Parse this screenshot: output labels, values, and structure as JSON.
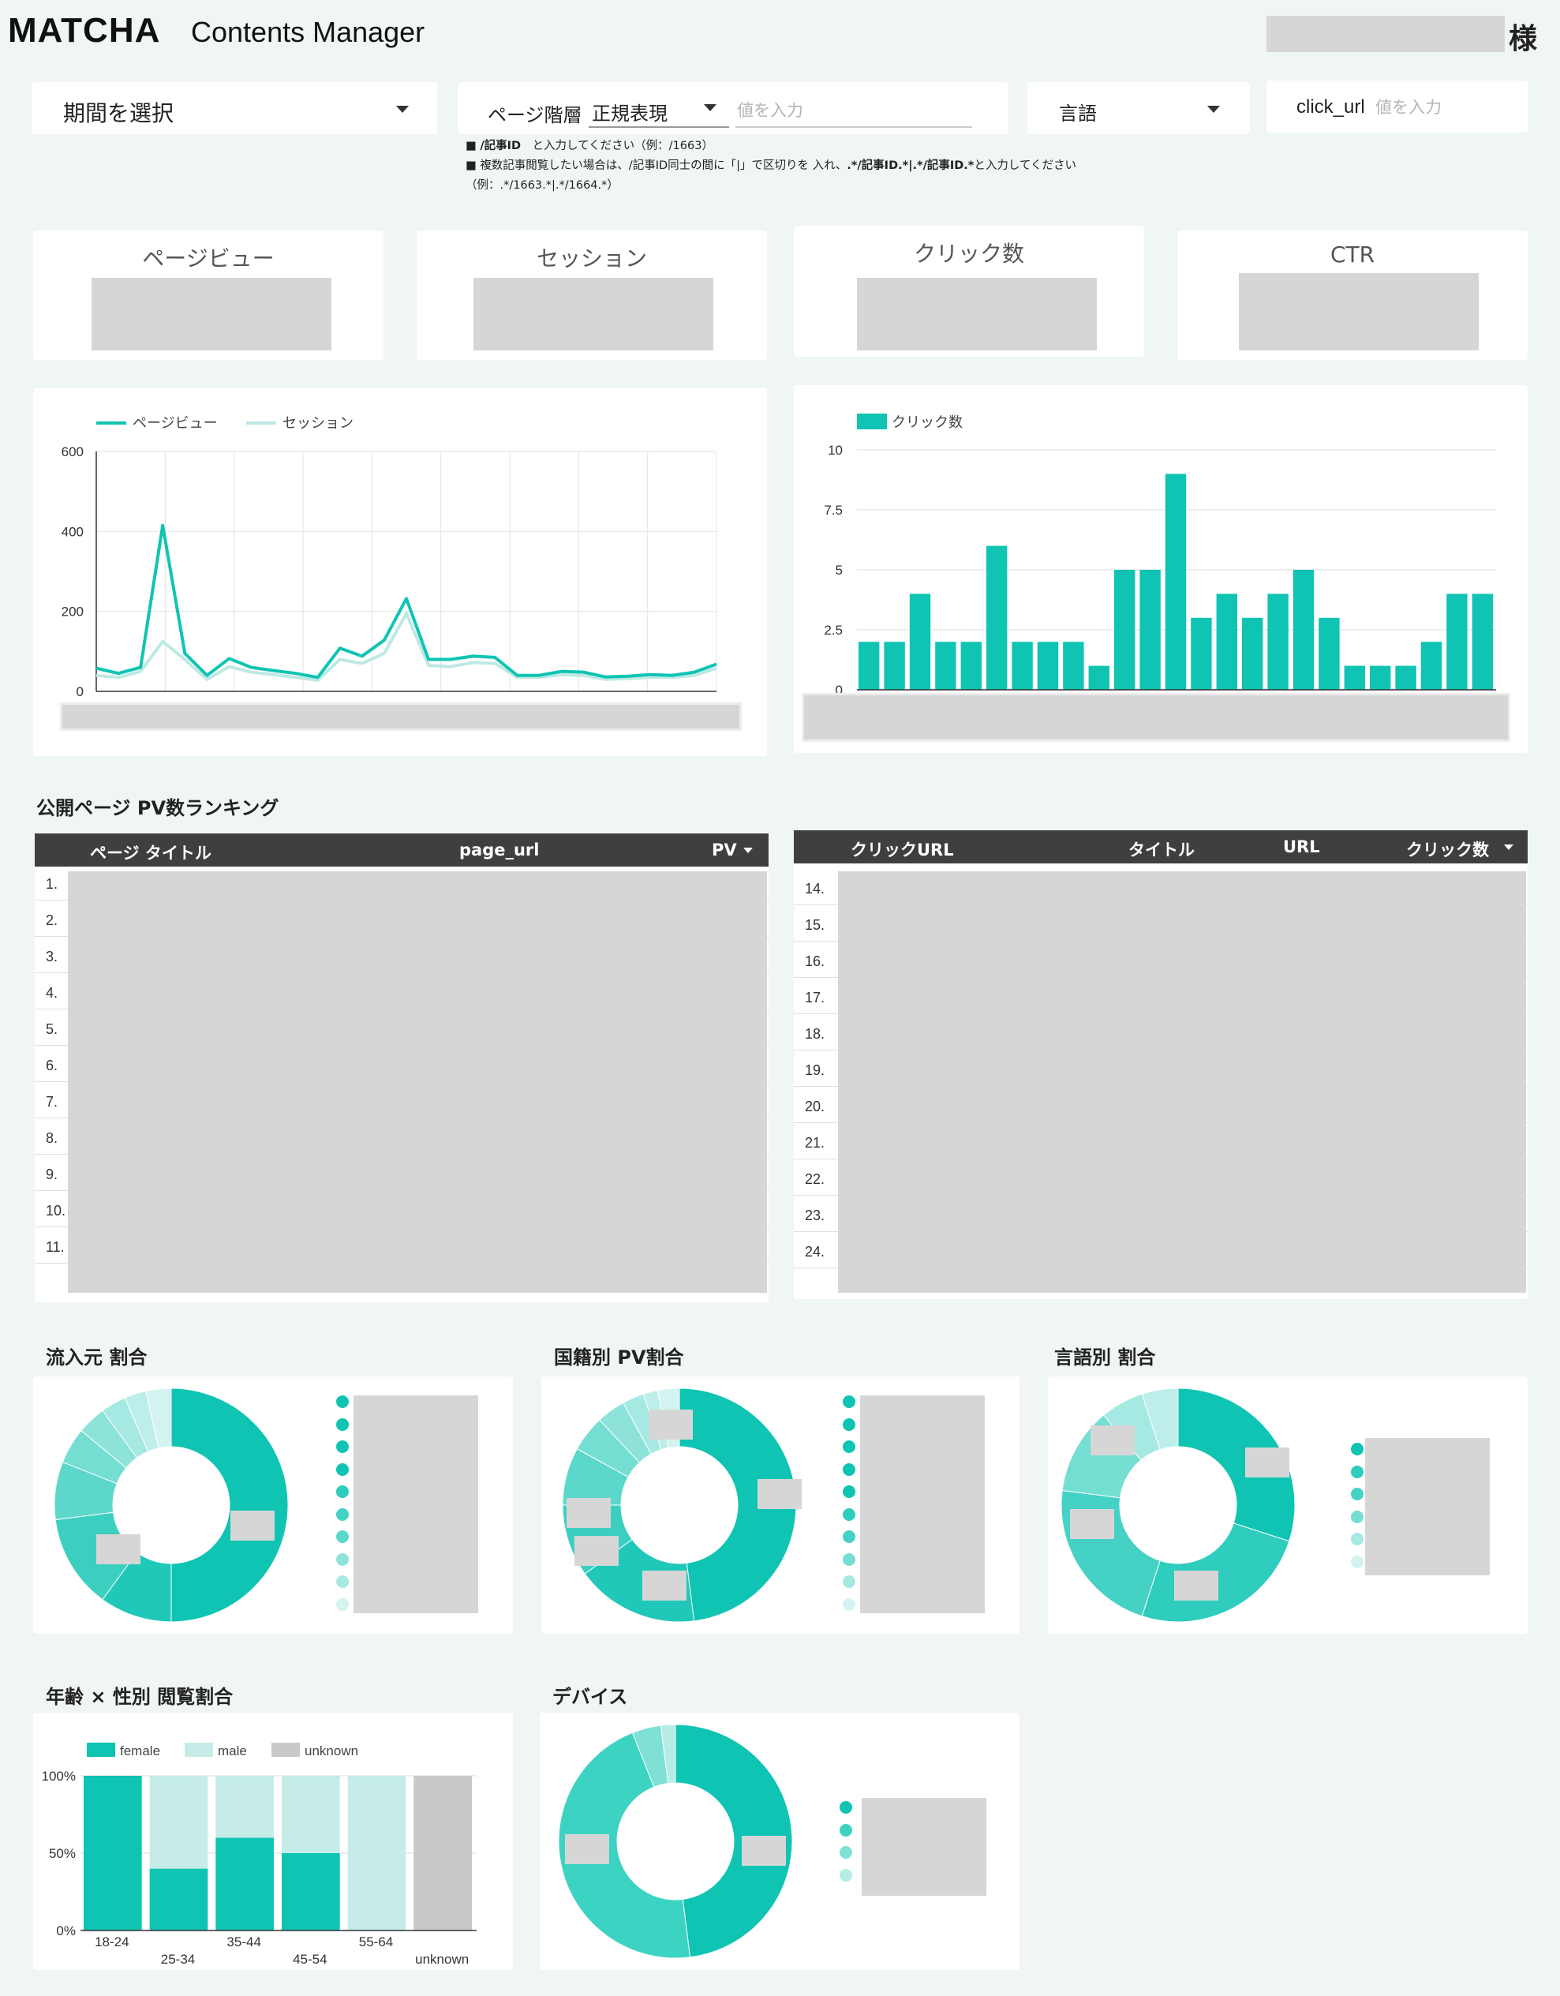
{
  "header": {
    "brand": "MATCHA",
    "subtitle": "Contents Manager",
    "honorific": "様"
  },
  "filters": {
    "period": {
      "label": "期間を選択"
    },
    "page_hierarchy": {
      "label": "ページ階層",
      "mode": "正規表現",
      "placeholder": "値を入力"
    },
    "language": {
      "label": "言語"
    },
    "click_url": {
      "label": "click_url",
      "placeholder": "値を入力"
    },
    "notes": {
      "line1_bold": "/記事ID",
      "line1_rest": "　と入力してください（例：/1663）",
      "line2_a": "複数記事閲覧したい場合は、/記事ID同士の間に「|」で区切りを 入れ、",
      "line2_bold": ".*/記事ID.*|.*/記事ID.*",
      "line2_c": "と入力してください",
      "line3": "（例：.*/1663.*|.*/1664.*）"
    }
  },
  "kpis": [
    {
      "label": "ページビュー"
    },
    {
      "label": "セッション"
    },
    {
      "label": "クリック数"
    },
    {
      "label": "CTR"
    }
  ],
  "pv_chart": {
    "chart_data": {
      "type": "line",
      "series": [
        {
          "name": "ページビュー",
          "color": "#0fc4b3",
          "values": [
            58,
            45,
            60,
            415,
            95,
            40,
            82,
            60,
            52,
            45,
            35,
            108,
            88,
            128,
            232,
            80,
            80,
            88,
            85,
            40,
            40,
            50,
            48,
            36,
            38,
            42,
            40,
            48,
            68
          ]
        },
        {
          "name": "セッション",
          "color": "#bde9e4",
          "values": [
            40,
            35,
            50,
            125,
            80,
            30,
            62,
            48,
            42,
            35,
            28,
            80,
            70,
            95,
            195,
            65,
            62,
            72,
            70,
            35,
            35,
            42,
            40,
            30,
            32,
            35,
            35,
            40,
            58
          ]
        }
      ],
      "ylim": [
        0,
        600
      ],
      "yticks": [
        "600",
        "400",
        "200",
        "0"
      ]
    }
  },
  "click_chart": {
    "chart_data": {
      "type": "bar",
      "series": [
        {
          "name": "クリック数",
          "color": "#0fc4b3",
          "values": [
            2,
            2,
            4,
            2,
            2,
            6,
            2,
            2,
            2,
            1,
            5,
            5,
            9,
            3,
            4,
            3,
            4,
            5,
            3,
            1,
            1,
            1,
            2,
            4,
            4
          ]
        }
      ],
      "ylim": [
        0,
        10
      ],
      "yticks": [
        "10",
        "7.5",
        "5",
        "2.5",
        "0"
      ]
    }
  },
  "ranking": {
    "title": "公開ページ PV数ランキング",
    "columns": [
      "ページ タイトル",
      "page_url",
      "PV"
    ],
    "row_numbers": [
      "1.",
      "2.",
      "3.",
      "4.",
      "5.",
      "6.",
      "7.",
      "8.",
      "9.",
      "10.",
      "11."
    ]
  },
  "clicks_table": {
    "columns": [
      "クリックURL",
      "タイトル",
      "URL",
      "クリック数"
    ],
    "row_numbers": [
      "14.",
      "15.",
      "16.",
      "17.",
      "18.",
      "19.",
      "20.",
      "21.",
      "22.",
      "23.",
      "24."
    ]
  },
  "donuts": [
    {
      "title": "流入元 割合",
      "colors": [
        "#0fc4b3",
        "#2ecdbd",
        "#45d2c4",
        "#5cd8cb",
        "#74ded3",
        "#8de3da",
        "#a5e9e2",
        "#bdeee9",
        "#d3f4f0"
      ]
    },
    {
      "title": "国籍別 PV割合",
      "colors": [
        "#0fc4b3",
        "#2ecdbd",
        "#45d2c4",
        "#5cd8cb",
        "#74ded3",
        "#8de3da",
        "#a5e9e2",
        "#bdeee9",
        "#d3f4f0"
      ]
    },
    {
      "title": "言語別 割合",
      "colors": [
        "#0fc4b3",
        "#2ecdbd",
        "#45d2c4",
        "#74ded3",
        "#a5e9e2",
        "#d3f4f0"
      ]
    }
  ],
  "age_gender": {
    "title": "年齢 × 性別 閲覧割合",
    "chart_data": {
      "type": "bar",
      "stacked": true,
      "categories": [
        "18-24",
        "25-34",
        "35-44",
        "45-54",
        "55-64",
        "unknown"
      ],
      "series": [
        {
          "name": "female",
          "color": "#0fc4b3",
          "values": [
            100,
            40,
            60,
            50,
            0,
            0
          ]
        },
        {
          "name": "male",
          "color": "#c5ece7",
          "values": [
            0,
            60,
            40,
            50,
            100,
            0
          ]
        },
        {
          "name": "unknown",
          "color": "#c9c9c9",
          "values": [
            0,
            0,
            0,
            0,
            0,
            100
          ]
        }
      ],
      "yticks": [
        "100%",
        "50%",
        "0%"
      ]
    }
  },
  "device": {
    "title": "デバイス",
    "colors": [
      "#0fc4b3",
      "#3dd3c3",
      "#7fe0d6",
      "#b5ece6"
    ]
  }
}
